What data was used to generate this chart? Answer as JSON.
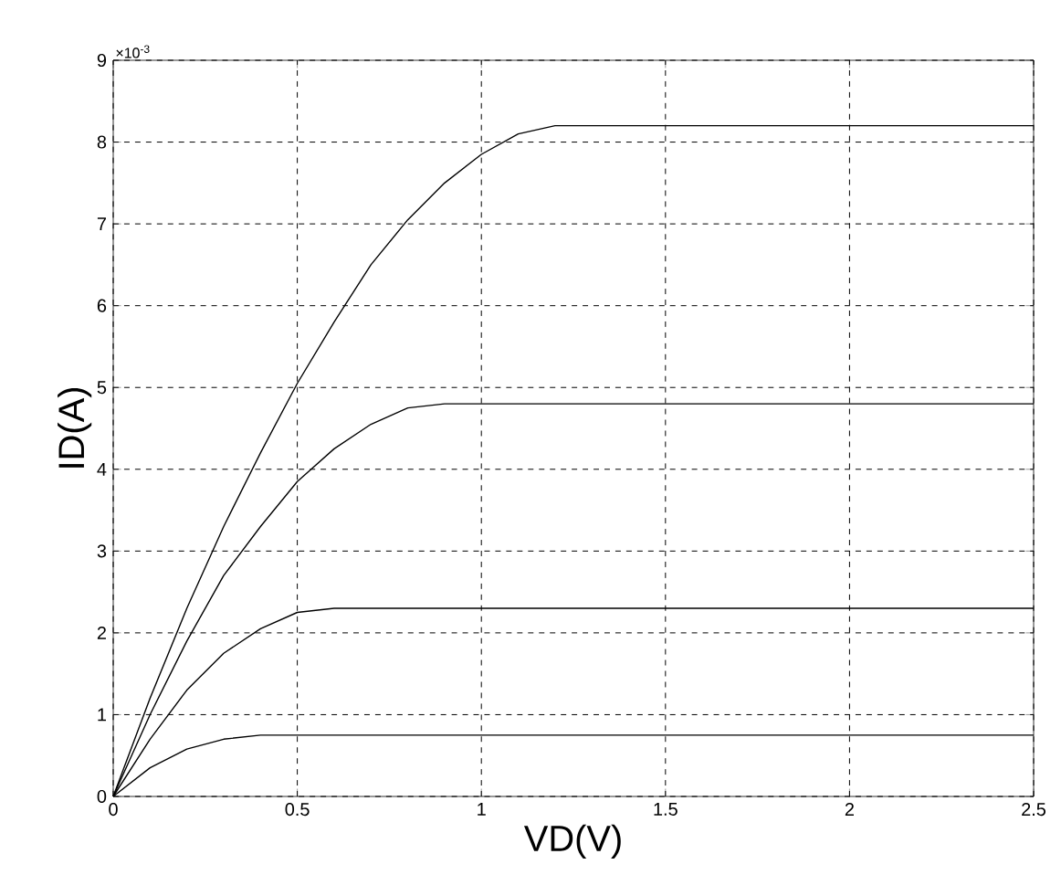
{
  "chart_data": {
    "type": "line",
    "xlabel": "VD(V)",
    "ylabel": "ID(A)",
    "annotations": [
      "×10$^{-3}$"
    ],
    "xlim": [
      0,
      2.5
    ],
    "ylim": [
      0,
      9
    ],
    "xticks": [
      0,
      0.5,
      1,
      1.5,
      2,
      2.5
    ],
    "yticks": [
      0,
      1,
      2,
      3,
      4,
      5,
      6,
      7,
      8,
      9
    ],
    "grid": true,
    "marker": "none",
    "line_style": "solid",
    "series": [
      {
        "color": "#000000",
        "x": [
          0,
          0.1,
          0.2,
          0.3,
          0.4,
          0.5,
          0.6,
          0.7,
          0.8,
          0.9,
          1.0,
          1.1,
          1.2,
          2.5
        ],
        "values": [
          0,
          1.2,
          2.3,
          3.3,
          4.2,
          5.05,
          5.8,
          6.5,
          7.05,
          7.5,
          7.85,
          8.1,
          8.2,
          8.2
        ]
      },
      {
        "color": "#000000",
        "x": [
          0,
          0.1,
          0.2,
          0.3,
          0.4,
          0.5,
          0.6,
          0.7,
          0.8,
          0.9,
          2.5
        ],
        "values": [
          0,
          1.0,
          1.9,
          2.7,
          3.3,
          3.85,
          4.25,
          4.55,
          4.75,
          4.8,
          4.8
        ]
      },
      {
        "color": "#000000",
        "x": [
          0,
          0.1,
          0.2,
          0.3,
          0.4,
          0.5,
          0.6,
          2.5
        ],
        "values": [
          0,
          0.7,
          1.3,
          1.75,
          2.05,
          2.25,
          2.3,
          2.3
        ]
      },
      {
        "color": "#000000",
        "x": [
          0,
          0.1,
          0.2,
          0.3,
          0.4,
          2.5
        ],
        "values": [
          0,
          0.35,
          0.58,
          0.7,
          0.75,
          0.75
        ]
      }
    ]
  }
}
